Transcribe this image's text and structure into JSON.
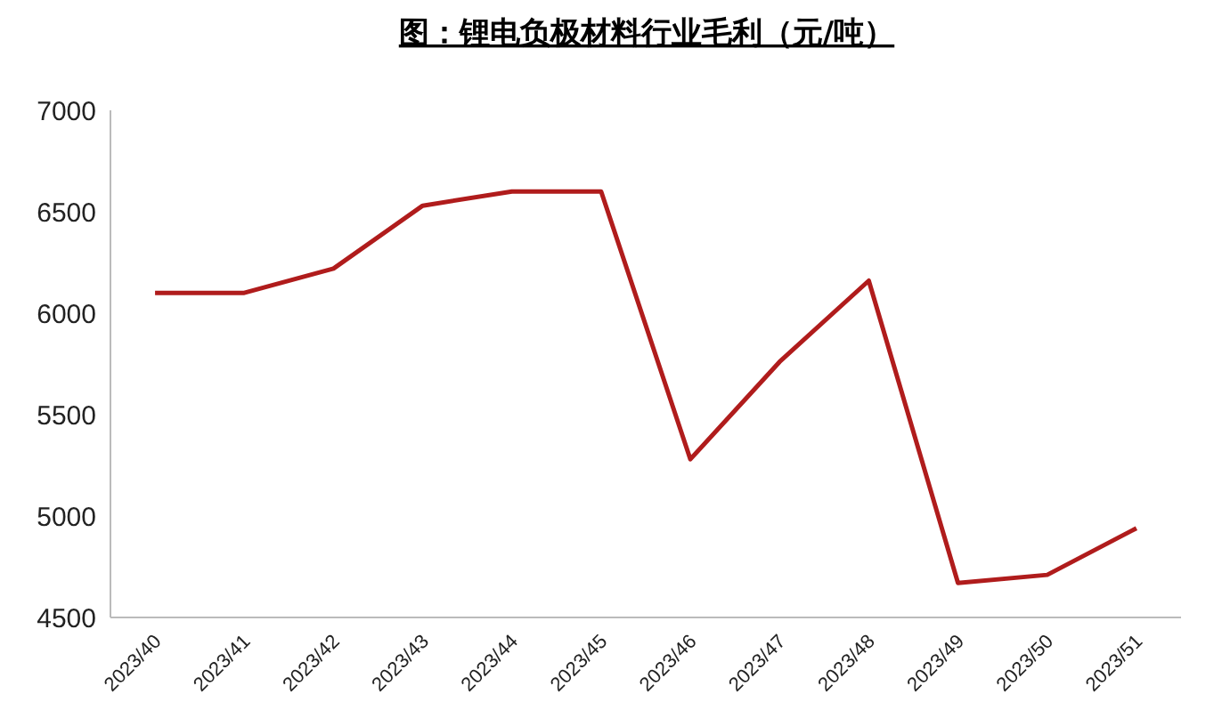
{
  "chart_data": {
    "type": "line",
    "title": "图：锂电负极材料行业毛利（元/吨）",
    "categories": [
      "2023/40",
      "2023/41",
      "2023/42",
      "2023/43",
      "2023/44",
      "2023/45",
      "2023/46",
      "2023/47",
      "2023/48",
      "2023/49",
      "2023/50",
      "2023/51"
    ],
    "series": [
      {
        "color": "#b01c1c",
        "values": [
          6100,
          6100,
          6220,
          6530,
          6600,
          6600,
          5280,
          5760,
          6160,
          4670,
          4710,
          4940
        ]
      }
    ],
    "ylim": [
      4500,
      7000
    ],
    "yticks": [
      4500,
      5000,
      5500,
      6000,
      6500,
      7000
    ],
    "grid": false,
    "marker": "none",
    "line_style": "solid"
  }
}
